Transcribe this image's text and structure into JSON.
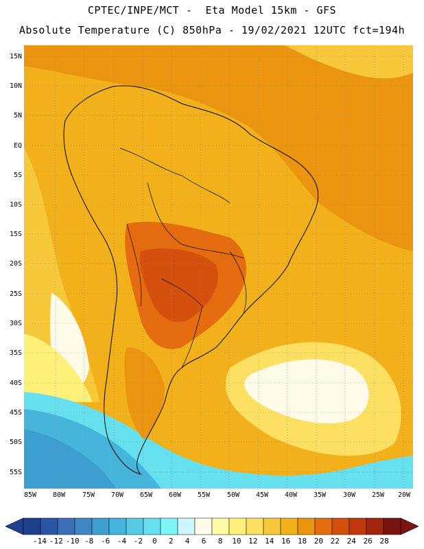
{
  "header": {
    "line1": "CPTEC/INPE/MCT -  Eta Model 15km - GFS",
    "line2": "Absolute Temperature (C) 850hPa - 19/02/2021 12UTC fct=194h"
  },
  "axes": {
    "lat_labels": [
      "15N",
      "10N",
      "5N",
      "EQ",
      "5S",
      "10S",
      "15S",
      "20S",
      "25S",
      "30S",
      "35S",
      "40S",
      "45S",
      "50S",
      "55S"
    ],
    "lon_labels": [
      "85W",
      "80W",
      "75W",
      "70W",
      "65W",
      "60W",
      "55W",
      "50W",
      "45W",
      "40W",
      "35W",
      "30W",
      "25W",
      "20W"
    ]
  },
  "colorbar": {
    "labels": [
      "-14",
      "-12",
      "-10",
      "-8",
      "-6",
      "-4",
      "-2",
      "0",
      "2",
      "4",
      "6",
      "8",
      "10",
      "12",
      "14",
      "16",
      "18",
      "20",
      "22",
      "24",
      "26",
      "28"
    ],
    "colors": [
      "#1f3f8f",
      "#2a56a6",
      "#3a6fb8",
      "#3f86c4",
      "#3c9fd0",
      "#45b5dc",
      "#55cbe6",
      "#66e0ee",
      "#7ef5f5",
      "#cdf5fb",
      "#fffbe8",
      "#fffaa8",
      "#fff07a",
      "#fde062",
      "#f7c83a",
      "#f2b01a",
      "#ea9410",
      "#e46c0e",
      "#d4500c",
      "#c0380c",
      "#a0240e",
      "#7a1410"
    ]
  }
}
